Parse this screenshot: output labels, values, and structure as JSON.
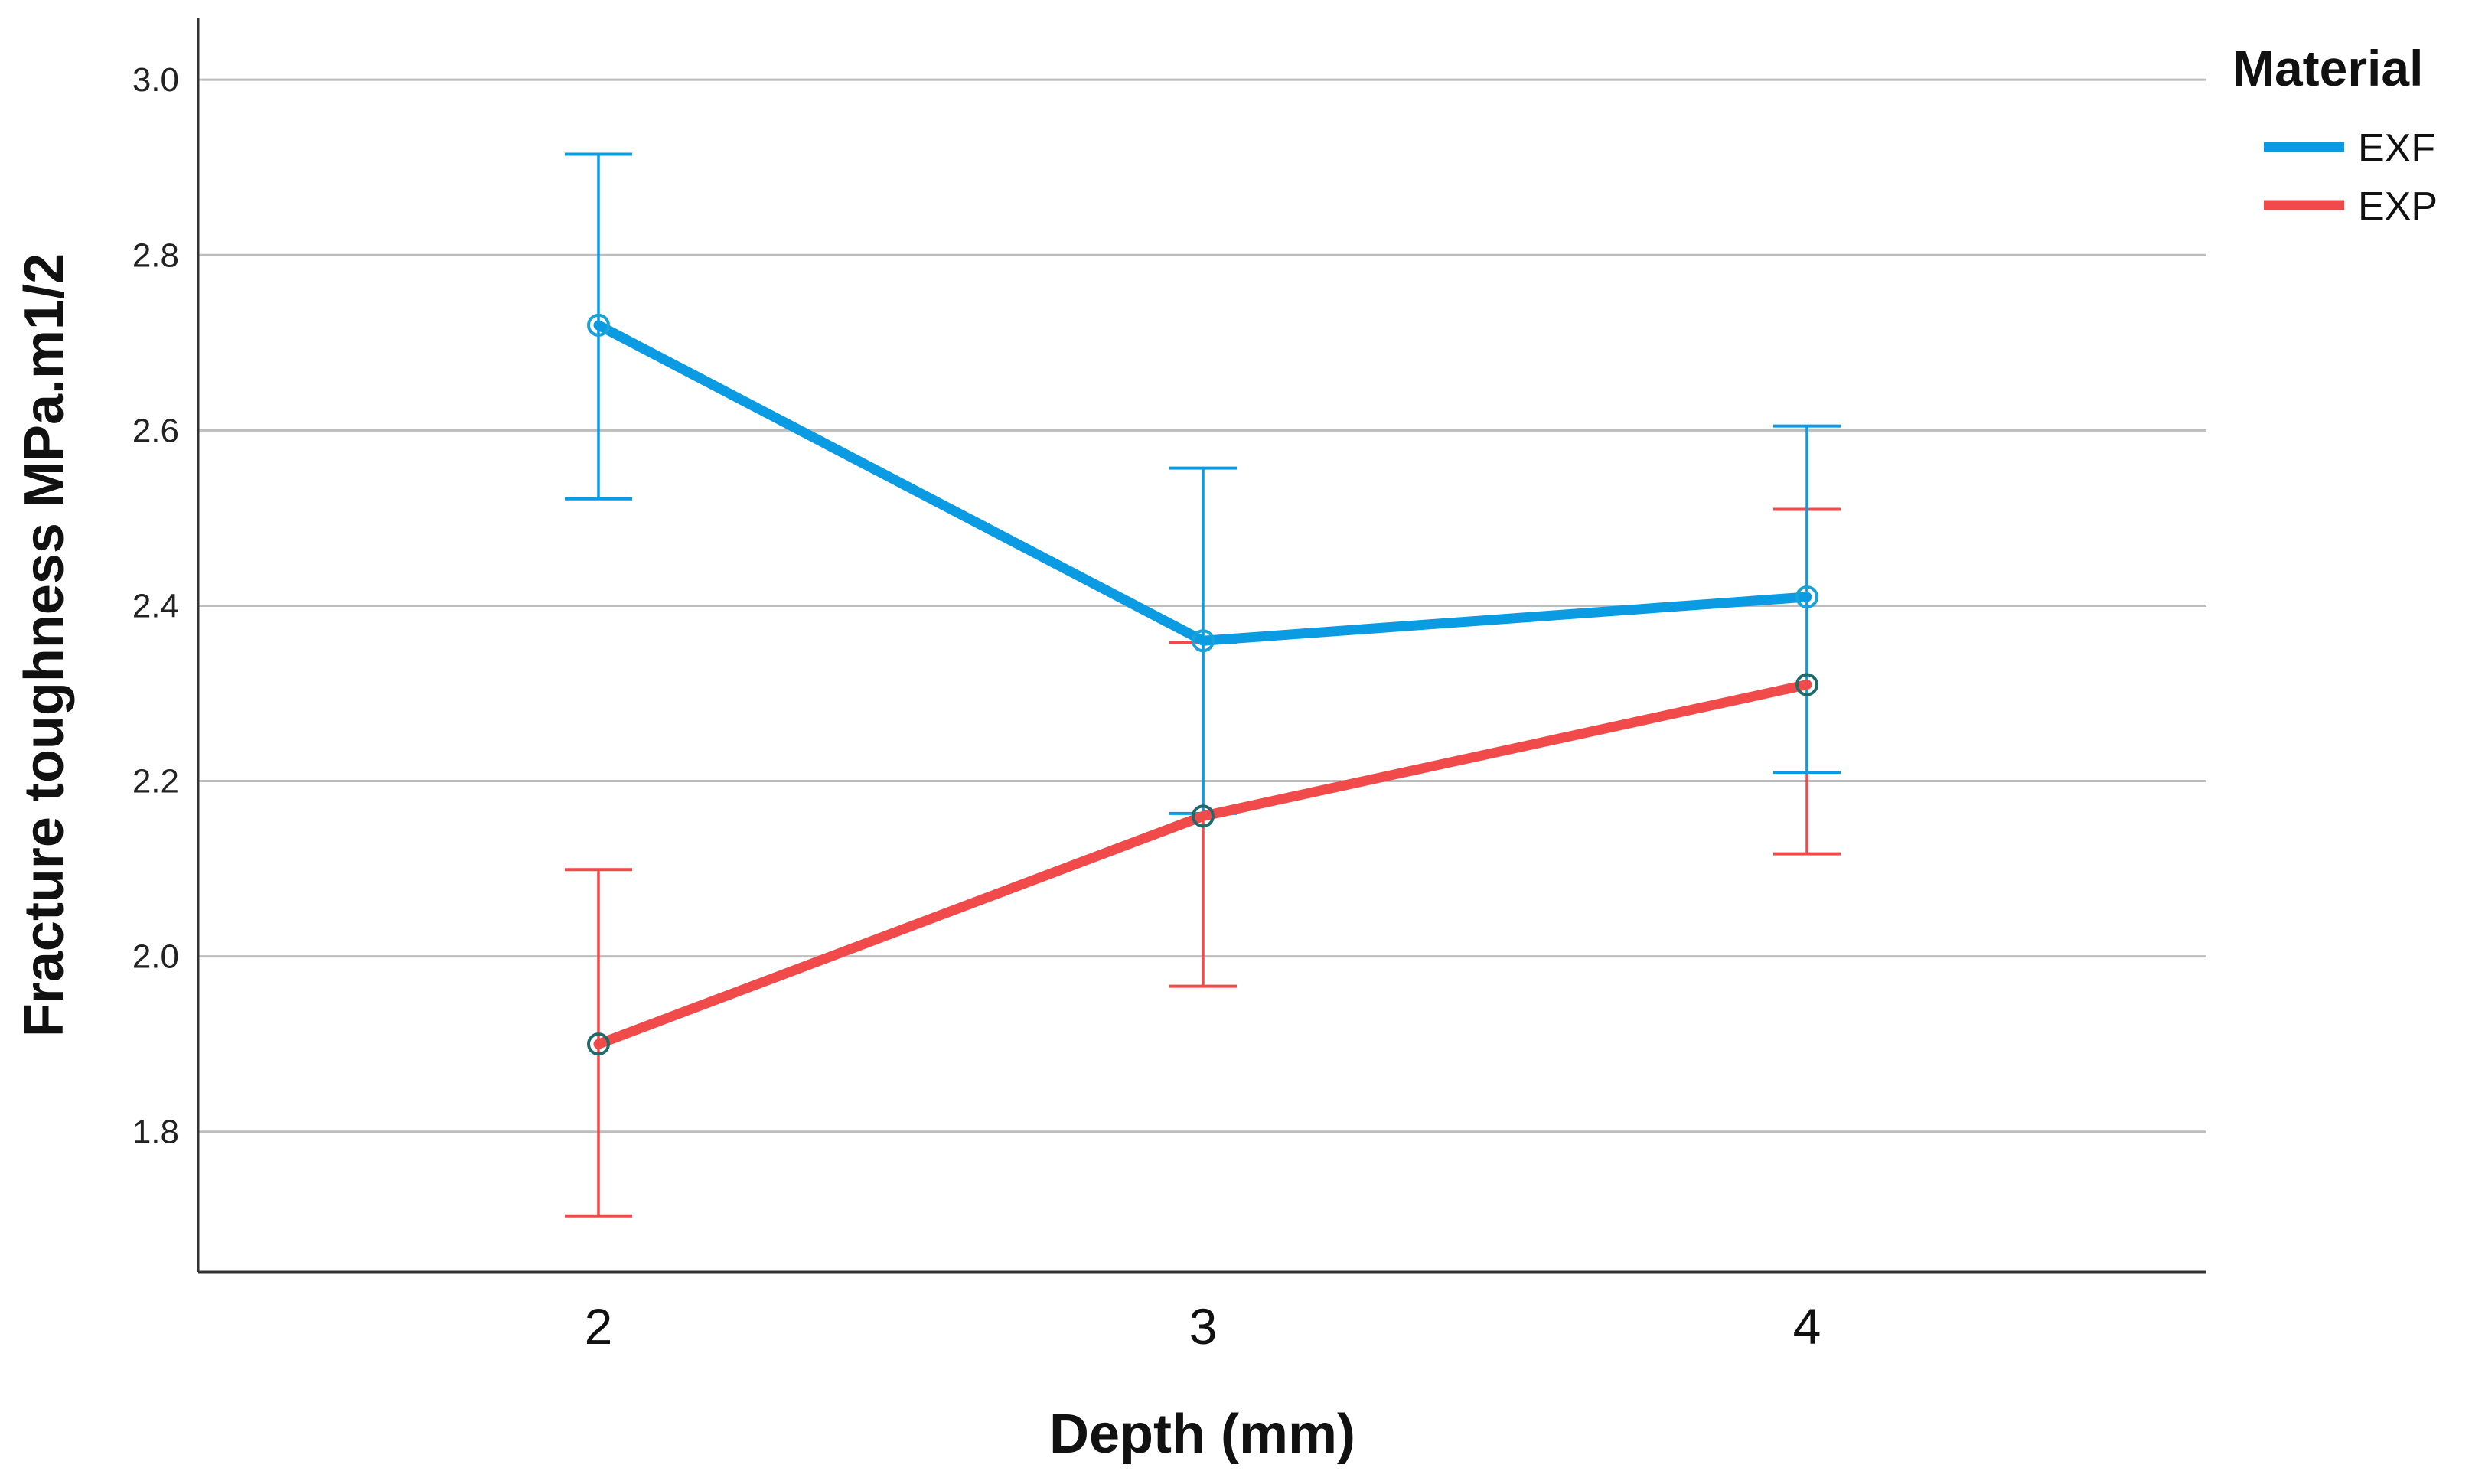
{
  "chart_data": {
    "type": "line",
    "title": "",
    "xlabel": "Depth (mm)",
    "ylabel": "Fracture toughness MPa.m1/2",
    "categories": [
      "2",
      "3",
      "4"
    ],
    "y_ticks": [
      "1.8",
      "2.0",
      "2.2",
      "2.4",
      "2.6",
      "2.8",
      "3.0"
    ],
    "ylim": [
      1.64,
      3.07
    ],
    "grid": "horizontal",
    "legend": {
      "title": "Material",
      "placement": "top-right"
    },
    "error_bars": true,
    "series": [
      {
        "name": "EXF",
        "color": "#0a9be3",
        "values": [
          2.72,
          2.36,
          2.41
        ],
        "error_upper": [
          2.915,
          2.557,
          2.605
        ],
        "error_lower": [
          2.522,
          2.163,
          2.21
        ]
      },
      {
        "name": "EXP",
        "color": "#f04a4a",
        "values": [
          1.9,
          2.16,
          2.31
        ],
        "error_upper": [
          2.099,
          2.358,
          2.51
        ],
        "error_lower": [
          1.704,
          1.966,
          2.117
        ]
      }
    ]
  }
}
